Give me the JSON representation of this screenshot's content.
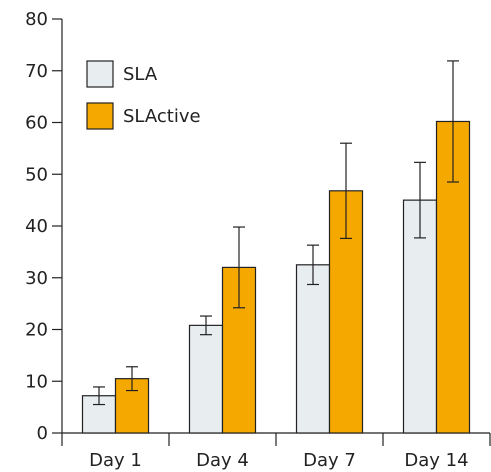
{
  "chart_data": {
    "type": "bar",
    "title": "",
    "xlabel": "",
    "ylabel": "",
    "categories": [
      "Day 1",
      "Day 4",
      "Day 7",
      "Day 14"
    ],
    "ylim": [
      0,
      80
    ],
    "yticks": [
      0,
      10,
      20,
      30,
      40,
      50,
      60,
      70,
      80
    ],
    "grid": false,
    "legend_position": "top-left",
    "series": [
      {
        "name": "SLA",
        "color": "#e8edef",
        "values": [
          7.2,
          20.8,
          32.5,
          45.0
        ],
        "error": [
          1.7,
          1.8,
          3.8,
          7.3
        ]
      },
      {
        "name": "SLActive",
        "color": "#f5a800",
        "values": [
          10.5,
          32.0,
          46.8,
          60.2
        ],
        "error": [
          2.3,
          7.8,
          9.2,
          11.7
        ]
      }
    ]
  }
}
